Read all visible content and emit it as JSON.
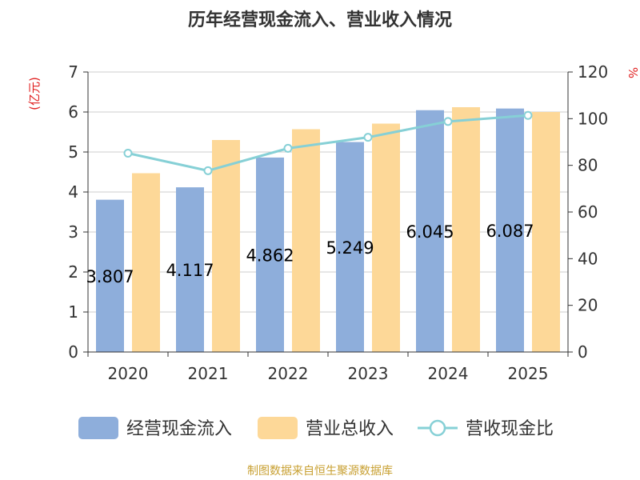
{
  "chart_data": {
    "type": "bar",
    "title": "历年经营现金流入、营业收入情况",
    "categories": [
      "2020",
      "2021",
      "2022",
      "2023",
      "2024",
      "2025"
    ],
    "y_left": {
      "unit": "(亿元)",
      "range": [
        0,
        7
      ],
      "ticks": [
        "0",
        "1",
        "2",
        "3",
        "4",
        "5",
        "6",
        "7"
      ]
    },
    "y_right": {
      "unit": "%",
      "range": [
        0,
        120
      ],
      "ticks": [
        "0",
        "20",
        "40",
        "60",
        "80",
        "100",
        "120"
      ]
    },
    "series": [
      {
        "name": "经营现金流入",
        "kind": "bar",
        "axis": "left",
        "color": "#8eaedb",
        "values": [
          3.807,
          4.117,
          4.862,
          5.249,
          6.045,
          6.087
        ],
        "labels": [
          "3.807",
          "4.117",
          "4.862",
          "5.249",
          "6.045",
          "6.087"
        ]
      },
      {
        "name": "营业总收入",
        "kind": "bar",
        "axis": "left",
        "color": "#fdd898",
        "values": [
          4.47,
          5.3,
          5.57,
          5.71,
          6.12,
          6.0
        ]
      },
      {
        "name": "营收现金比",
        "kind": "line",
        "axis": "right",
        "color": "#86d0d6",
        "values": [
          85.2,
          77.7,
          87.3,
          92.0,
          98.8,
          101.4
        ]
      }
    ],
    "grid": true,
    "legend_position": "bottom",
    "source": "制图数据来自恒生聚源数据库"
  }
}
